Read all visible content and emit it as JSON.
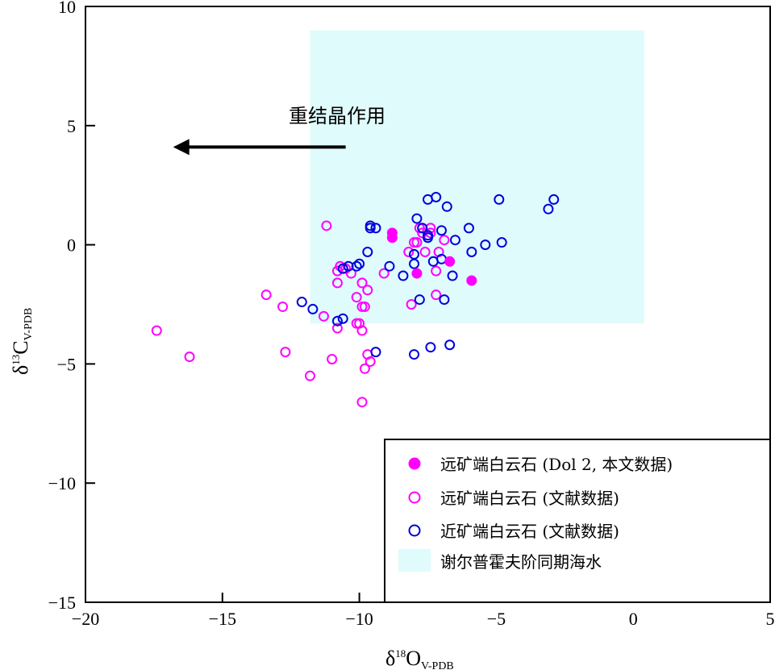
{
  "chart_data": {
    "type": "scatter",
    "xlabel_prefix": "δ",
    "xlabel_sup": "18",
    "xlabel_main": "O",
    "xlabel_sub": "V-PDB",
    "ylabel_prefix": "δ",
    "ylabel_sup": "13",
    "ylabel_main": "C",
    "ylabel_sub": "V-PDB",
    "xlim": [
      -20,
      5
    ],
    "ylim": [
      -15,
      10
    ],
    "xticks": [
      -20,
      -15,
      -10,
      -5,
      0,
      5
    ],
    "yticks": [
      -15,
      -10,
      -5,
      0,
      5,
      10
    ],
    "xtick_labels": [
      "−20",
      "−15",
      "−10",
      "−5",
      "0",
      "5"
    ],
    "ytick_labels": [
      "−15",
      "−10",
      "−5",
      "0",
      "5",
      "10"
    ],
    "region": {
      "name": "谢尔普霍夫阶同期海水",
      "x": [
        -11.8,
        0.4
      ],
      "y": [
        -3.3,
        9.0
      ],
      "color": "#e0fbfb"
    },
    "annotation": {
      "text": "重结晶作用",
      "arrow_from": [
        -10.5,
        4.1
      ],
      "arrow_to": [
        -16.8,
        4.1
      ]
    },
    "series": [
      {
        "name": "远矿端白云石 (Dol 2, 本文数据)",
        "marker": "filled-circle",
        "color": "#ff00ff",
        "points": [
          [
            -8.8,
            0.5
          ],
          [
            -8.8,
            0.3
          ],
          [
            -7.9,
            -1.2
          ],
          [
            -6.7,
            -0.7
          ],
          [
            -5.9,
            -1.5
          ]
        ]
      },
      {
        "name": "远矿端白云石 (文献数据)",
        "marker": "open-circle",
        "color": "#ff00ff",
        "points": [
          [
            -17.4,
            -3.6
          ],
          [
            -16.2,
            -4.7
          ],
          [
            -13.4,
            -2.1
          ],
          [
            -12.8,
            -2.6
          ],
          [
            -12.7,
            -4.5
          ],
          [
            -11.8,
            -5.5
          ],
          [
            -11.3,
            -3.0
          ],
          [
            -11.2,
            0.8
          ],
          [
            -11.0,
            -4.8
          ],
          [
            -10.8,
            -1.1
          ],
          [
            -10.8,
            -1.6
          ],
          [
            -10.7,
            -0.9
          ],
          [
            -10.8,
            -3.5
          ],
          [
            -10.5,
            -1.0
          ],
          [
            -10.3,
            -1.2
          ],
          [
            -10.1,
            -2.2
          ],
          [
            -10.1,
            -3.3
          ],
          [
            -10.0,
            -3.3
          ],
          [
            -9.9,
            -1.6
          ],
          [
            -9.9,
            -2.6
          ],
          [
            -9.9,
            -3.6
          ],
          [
            -9.8,
            -2.6
          ],
          [
            -9.7,
            -1.9
          ],
          [
            -9.8,
            -5.2
          ],
          [
            -9.7,
            -4.6
          ],
          [
            -9.6,
            -4.9
          ],
          [
            -9.9,
            -6.6
          ],
          [
            -9.1,
            -1.2
          ],
          [
            -8.2,
            -0.3
          ],
          [
            -8.1,
            -2.5
          ],
          [
            -8.0,
            0.1
          ],
          [
            -7.9,
            0.1
          ],
          [
            -7.8,
            0.7
          ],
          [
            -7.7,
            0.5
          ],
          [
            -7.6,
            -0.3
          ],
          [
            -7.4,
            0.7
          ],
          [
            -7.4,
            0.5
          ],
          [
            -7.2,
            -1.1
          ],
          [
            -7.1,
            -0.3
          ],
          [
            -7.2,
            -2.1
          ],
          [
            -6.9,
            0.2
          ]
        ]
      },
      {
        "name": "近矿端白云石 (文献数据)",
        "marker": "open-circle",
        "color": "#0000dd",
        "points": [
          [
            -12.1,
            -2.4
          ],
          [
            -11.7,
            -2.7
          ],
          [
            -10.8,
            -3.2
          ],
          [
            -10.6,
            -3.1
          ],
          [
            -10.6,
            -1.0
          ],
          [
            -10.4,
            -0.9
          ],
          [
            -10.1,
            -0.9
          ],
          [
            -10.0,
            -0.8
          ],
          [
            -9.7,
            -0.3
          ],
          [
            -9.6,
            0.8
          ],
          [
            -9.6,
            0.7
          ],
          [
            -9.4,
            0.7
          ],
          [
            -9.4,
            -4.5
          ],
          [
            -8.9,
            -0.9
          ],
          [
            -8.4,
            -1.3
          ],
          [
            -8.0,
            -0.8
          ],
          [
            -8.0,
            -0.4
          ],
          [
            -8.0,
            -4.6
          ],
          [
            -7.9,
            1.1
          ],
          [
            -7.8,
            -2.3
          ],
          [
            -7.7,
            0.7
          ],
          [
            -7.5,
            0.3
          ],
          [
            -7.5,
            0.4
          ],
          [
            -7.5,
            1.9
          ],
          [
            -7.4,
            -4.3
          ],
          [
            -7.3,
            -0.7
          ],
          [
            -7.2,
            2.0
          ],
          [
            -7.0,
            0.6
          ],
          [
            -7.0,
            -0.6
          ],
          [
            -6.9,
            -2.3
          ],
          [
            -6.8,
            1.6
          ],
          [
            -6.7,
            -4.2
          ],
          [
            -6.6,
            -1.3
          ],
          [
            -6.5,
            0.2
          ],
          [
            -6.0,
            0.7
          ],
          [
            -5.9,
            -0.3
          ],
          [
            -5.4,
            0.0
          ],
          [
            -4.9,
            1.9
          ],
          [
            -4.8,
            0.1
          ],
          [
            -3.1,
            1.5
          ],
          [
            -2.9,
            1.9
          ]
        ]
      }
    ]
  }
}
